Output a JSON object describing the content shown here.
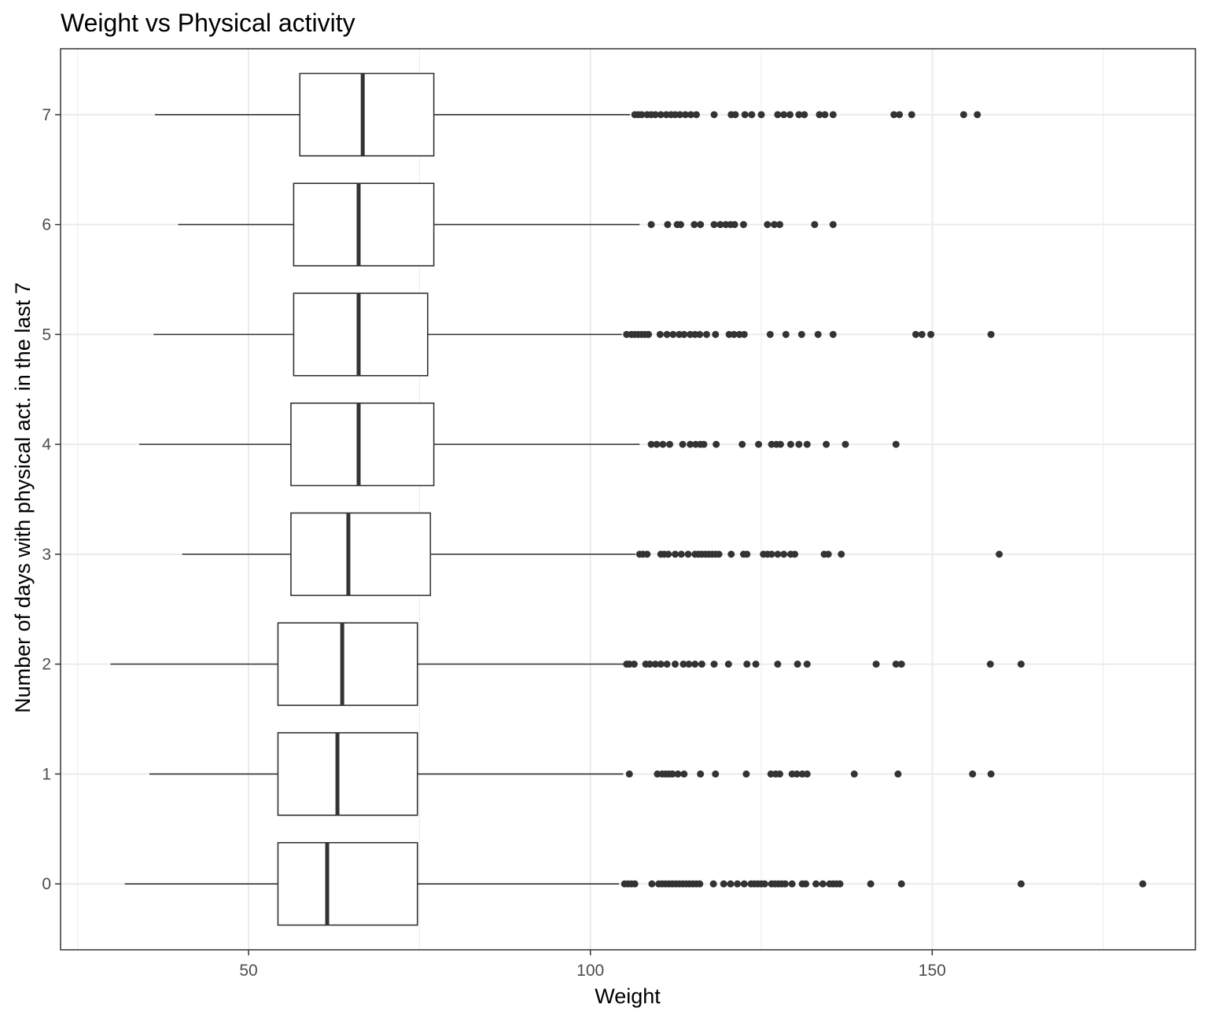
{
  "chart_data": {
    "type": "boxplot",
    "orientation": "horizontal",
    "title": "Weight vs Physical activity",
    "xlabel": "Weight",
    "ylabel": "Number of days with physical act. in the last 7",
    "xlim": [
      22.5,
      188.5
    ],
    "ylim": [
      -0.6,
      7.6
    ],
    "x_ticks": [
      50,
      100,
      150
    ],
    "x_minor_ticks": [
      25,
      75,
      125,
      175
    ],
    "y_ticks": [
      0,
      1,
      2,
      3,
      4,
      5,
      6,
      7
    ],
    "grid": true,
    "theme": "bw",
    "colors": {
      "box_fill": "#ffffff",
      "box_line": "#333333",
      "outlier": "#333333",
      "grid": "#ebebeb",
      "panel_border": "#333333"
    },
    "categories": [
      "0",
      "1",
      "2",
      "3",
      "4",
      "5",
      "6",
      "7"
    ],
    "boxes": [
      {
        "category": "0",
        "whisker_low": 31.9,
        "q1": 54.3,
        "median": 61.5,
        "q3": 74.7,
        "whisker_high": 104.2,
        "outliers": [
          105,
          105.5,
          106,
          106.5,
          109,
          110,
          110.5,
          111,
          111.5,
          112,
          112.5,
          113,
          113.5,
          114,
          114.5,
          115,
          115.5,
          116,
          118,
          119.5,
          120.5,
          121.5,
          122.5,
          123.5,
          124,
          124.5,
          125,
          125.5,
          126.5,
          127,
          127.5,
          128,
          128.5,
          129.5,
          131,
          131.5,
          133,
          134,
          135,
          135.5,
          136,
          136.5,
          141,
          145.5,
          163,
          180.8
        ]
      },
      {
        "category": "1",
        "whisker_low": 35.5,
        "q1": 54.3,
        "median": 63.0,
        "q3": 74.7,
        "whisker_high": 104.8,
        "outliers": [
          105.7,
          109.8,
          110.5,
          111,
          111.5,
          112,
          112.8,
          113.7,
          116.1,
          118.3,
          122.8,
          126.4,
          127.1,
          127.7,
          129.5,
          130.2,
          131,
          131.7,
          138.6,
          145,
          155.9,
          158.6
        ]
      },
      {
        "category": "2",
        "whisker_low": 29.8,
        "q1": 54.3,
        "median": 63.7,
        "q3": 74.7,
        "whisker_high": 104.8,
        "outliers": [
          105.3,
          105.7,
          106.4,
          108.1,
          108.7,
          109.5,
          110.3,
          111.2,
          112.4,
          113.6,
          114.4,
          115.3,
          116.3,
          118.1,
          120.2,
          122.9,
          124.2,
          127.4,
          130.3,
          131.7,
          141.8,
          144.7,
          145.5,
          158.5,
          163
        ]
      },
      {
        "category": "3",
        "whisker_low": 40.3,
        "q1": 56.2,
        "median": 64.6,
        "q3": 76.6,
        "whisker_high": 106.6,
        "outliers": [
          107.2,
          107.7,
          108.3,
          110.3,
          110.8,
          111.4,
          112.4,
          113.3,
          114.3,
          115.3,
          115.8,
          116.3,
          116.8,
          117.3,
          117.8,
          118.3,
          118.8,
          120.6,
          122.4,
          122.9,
          125.3,
          125.9,
          126.5,
          127.4,
          128.3,
          129.3,
          129.9,
          134.2,
          134.8,
          136.7,
          159.8
        ]
      },
      {
        "category": "4",
        "whisker_low": 34.0,
        "q1": 56.2,
        "median": 66.1,
        "q3": 77.1,
        "whisker_high": 107.2,
        "outliers": [
          108.9,
          109.7,
          110.6,
          111.6,
          113.5,
          114.6,
          115.4,
          116.1,
          116.6,
          118.4,
          122.2,
          124.6,
          126.5,
          127.2,
          127.8,
          129.3,
          130.5,
          131.7,
          134.5,
          137.3,
          144.7
        ]
      },
      {
        "category": "5",
        "whisker_low": 36.1,
        "q1": 56.6,
        "median": 66.1,
        "q3": 76.2,
        "whisker_high": 104.6,
        "outliers": [
          105.3,
          106,
          106.5,
          107,
          107.5,
          108,
          108.5,
          110.2,
          111.2,
          112.1,
          113,
          113.7,
          114.6,
          115.3,
          116,
          117,
          118.3,
          120.3,
          121,
          121.8,
          122.5,
          126.3,
          128.6,
          130.9,
          133.3,
          135.5,
          147.6,
          148.5,
          149.8,
          158.6
        ]
      },
      {
        "category": "6",
        "whisker_low": 39.7,
        "q1": 56.6,
        "median": 66.1,
        "q3": 77.1,
        "whisker_high": 107.2,
        "outliers": [
          108.9,
          111.3,
          112.7,
          113.2,
          115.2,
          116.1,
          118.1,
          119,
          119.8,
          120.5,
          121.1,
          122.4,
          125.9,
          126.9,
          127.7,
          132.8,
          135.5
        ]
      },
      {
        "category": "7",
        "whisker_low": 36.3,
        "q1": 57.5,
        "median": 66.7,
        "q3": 77.1,
        "whisker_high": 105.8,
        "outliers": [
          106.5,
          107,
          107.5,
          108.3,
          108.9,
          109.5,
          110.3,
          111.1,
          111.8,
          112.4,
          113.1,
          113.9,
          114.7,
          115.5,
          118.1,
          120.6,
          121.2,
          122.6,
          123.6,
          125,
          127.4,
          128.3,
          129.2,
          130.5,
          131.3,
          133.5,
          134.3,
          135.5,
          144.4,
          145.2,
          147,
          154.6,
          156.6
        ]
      }
    ]
  }
}
